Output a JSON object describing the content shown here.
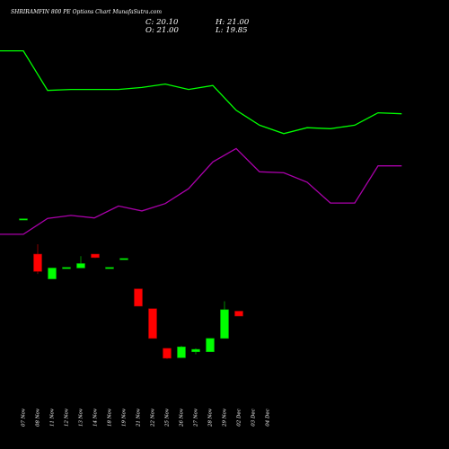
{
  "header": {
    "title": "SHRIRAMFIN 800 PE Options Chart MunafaSutra.com",
    "close": "C: 20.10",
    "open": "O: 21.00",
    "high": "H: 21.00",
    "low": "L: 19.85"
  },
  "colors": {
    "background": "#000000",
    "up": "#00ff00",
    "down": "#ff0000",
    "flat": "#00ff00",
    "line_upper": "#00ff00",
    "line_lower": "#aa00aa"
  },
  "chart_data": {
    "type": "candlestick",
    "dates": [
      "07 Nov",
      "08 Nov",
      "11 Nov",
      "12 Nov",
      "13 Nov",
      "14 Nov",
      "18 Nov",
      "19 Nov",
      "21 Nov",
      "22 Nov",
      "25 Nov",
      "26 Nov",
      "27 Nov",
      "28 Nov",
      "29 Nov",
      "02 Dec",
      "03 Dec",
      "04 Dec"
    ],
    "candles": [
      {
        "date": "07 Nov",
        "open": 48.0,
        "high": 48.0,
        "low": 48.0,
        "close": 48.0
      },
      {
        "date": "08 Nov",
        "open": 41.0,
        "high": 43.0,
        "low": 37.0,
        "close": 37.5
      },
      {
        "date": "11 Nov",
        "open": 36.0,
        "high": 38.2,
        "low": 36.0,
        "close": 38.2
      },
      {
        "date": "12 Nov",
        "open": 38.2,
        "high": 38.2,
        "low": 38.2,
        "close": 38.2
      },
      {
        "date": "13 Nov",
        "open": 38.2,
        "high": 40.6,
        "low": 38.2,
        "close": 39.1
      },
      {
        "date": "14 Nov",
        "open": 41.0,
        "high": 41.0,
        "low": 40.2,
        "close": 40.3
      },
      {
        "date": "18 Nov",
        "open": 38.2,
        "high": 38.2,
        "low": 38.2,
        "close": 38.2
      },
      {
        "date": "19 Nov",
        "open": 40.0,
        "high": 40.0,
        "low": 40.0,
        "close": 40.0
      },
      {
        "date": "21 Nov",
        "open": 34.0,
        "high": 34.0,
        "low": 30.5,
        "close": 30.5
      },
      {
        "date": "22 Nov",
        "open": 30.0,
        "high": 30.0,
        "low": 24.0,
        "close": 24.0
      },
      {
        "date": "25 Nov",
        "open": 22.0,
        "high": 22.0,
        "low": 19.85,
        "close": 20.0
      },
      {
        "date": "26 Nov",
        "open": 20.1,
        "high": 22.5,
        "low": 20.1,
        "close": 22.3
      },
      {
        "date": "27 Nov",
        "open": 21.3,
        "high": 22.0,
        "low": 20.8,
        "close": 21.8
      },
      {
        "date": "28 Nov",
        "open": 21.3,
        "high": 24.0,
        "low": 21.3,
        "close": 24.0
      },
      {
        "date": "29 Nov",
        "open": 24.0,
        "high": 31.5,
        "low": 24.0,
        "close": 29.8
      },
      {
        "date": "02 Dec",
        "open": 29.5,
        "high": 29.5,
        "low": 28.5,
        "close": 28.5
      }
    ],
    "upper_line": [
      82,
      82,
      74,
      74.2,
      74.2,
      74.2,
      74.6,
      75.3,
      74.2,
      75,
      70,
      67,
      65.3,
      66.5,
      66.3,
      67,
      69.5,
      69.3
    ],
    "lower_line": [
      45,
      45,
      48.2,
      48.8,
      48.3,
      50.7,
      49.7,
      51.2,
      54.2,
      59.6,
      62.3,
      57.6,
      57.4,
      55.5,
      51.3,
      51.3,
      58.8,
      58.8
    ],
    "ylim": [
      18,
      85
    ],
    "grid": false
  }
}
